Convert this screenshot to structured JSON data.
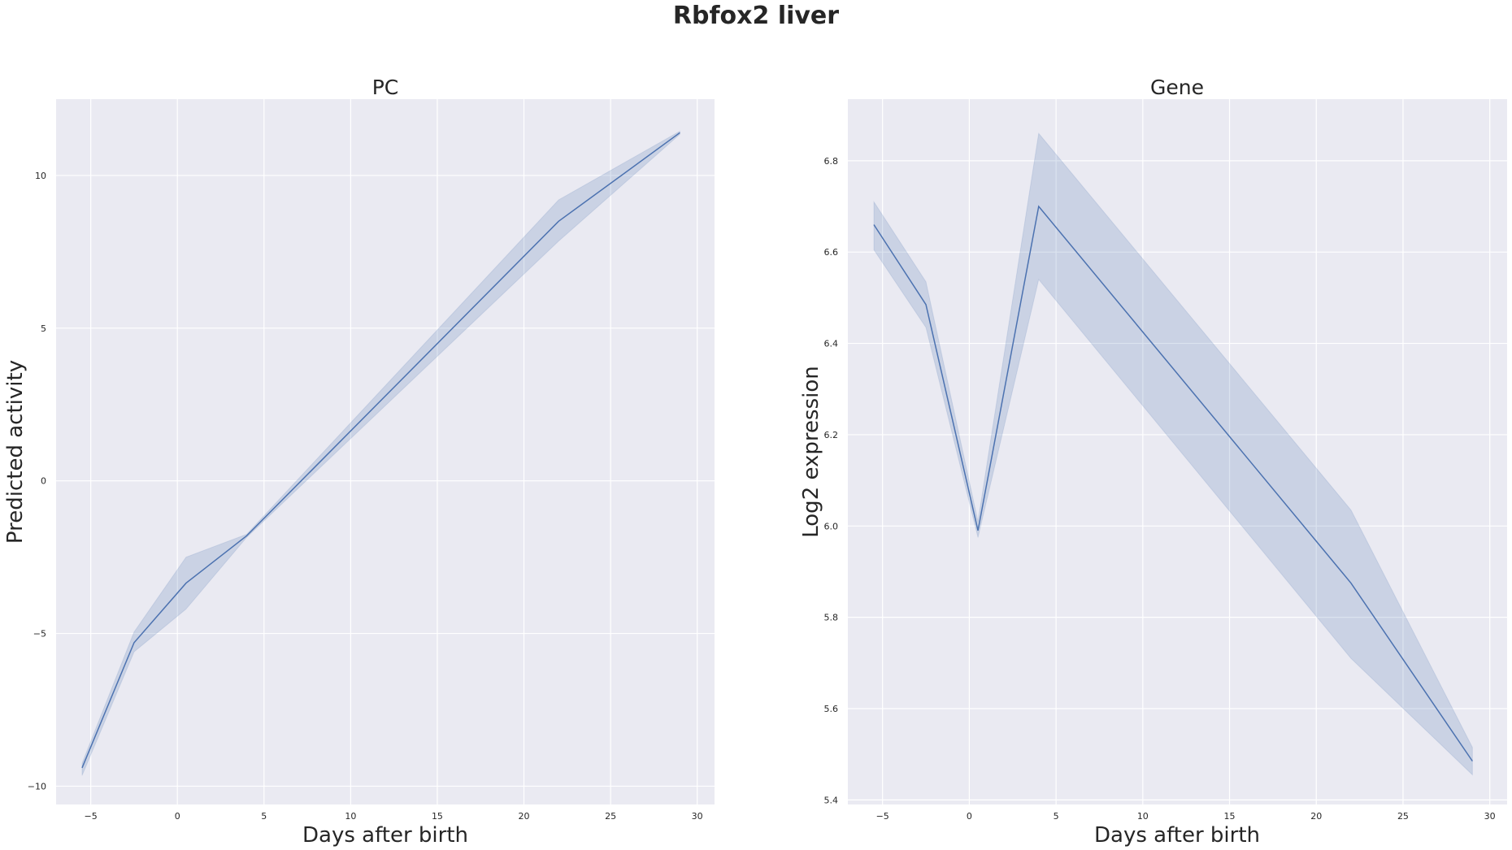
{
  "figure": {
    "title": "Rbfox2 liver"
  },
  "chart_data": [
    {
      "type": "line",
      "title": "PC",
      "xlabel": "Days after birth",
      "ylabel": "Predicted activity",
      "xlim": [
        -7,
        31
      ],
      "ylim": [
        -10.6,
        12.5
      ],
      "xticks": [
        -5,
        0,
        5,
        10,
        15,
        20,
        25,
        30
      ],
      "yticks": [
        -10,
        -5,
        0,
        5,
        10
      ],
      "xtick_labels": [
        "−5",
        "0",
        "5",
        "10",
        "15",
        "20",
        "25",
        "30"
      ],
      "ytick_labels": [
        "−10",
        "−5",
        "0",
        "5",
        "10"
      ],
      "grid": true,
      "series": [
        {
          "x": [
            -5.5,
            -2.5,
            0.5,
            4,
            22,
            29
          ],
          "y": [
            -9.4,
            -5.3,
            -3.35,
            -1.8,
            8.5,
            11.4
          ],
          "ci_lower": [
            -9.65,
            -5.6,
            -4.2,
            -1.85,
            7.85,
            11.35
          ],
          "ci_upper": [
            -9.25,
            -4.95,
            -2.5,
            -1.75,
            9.2,
            11.45
          ],
          "color": "#4c72b0"
        }
      ]
    },
    {
      "type": "line",
      "title": "Gene",
      "xlabel": "Days after birth",
      "ylabel": "Log2 expression",
      "xlim": [
        -7,
        31
      ],
      "ylim": [
        5.39,
        6.935
      ],
      "xticks": [
        -5,
        0,
        5,
        10,
        15,
        20,
        25,
        30
      ],
      "yticks": [
        5.4,
        5.6,
        5.8,
        6.0,
        6.2,
        6.4,
        6.6,
        6.8
      ],
      "xtick_labels": [
        "−5",
        "0",
        "5",
        "10",
        "15",
        "20",
        "25",
        "30"
      ],
      "ytick_labels": [
        "5.4",
        "5.6",
        "5.8",
        "6.0",
        "6.2",
        "6.4",
        "6.6",
        "6.8"
      ],
      "grid": true,
      "series": [
        {
          "x": [
            -5.5,
            -2.5,
            0.5,
            4,
            22,
            29
          ],
          "y": [
            6.66,
            6.485,
            5.99,
            6.7,
            5.875,
            5.485
          ],
          "ci_lower": [
            6.605,
            6.435,
            5.975,
            6.54,
            5.71,
            5.455
          ],
          "ci_upper": [
            6.71,
            6.535,
            6.01,
            6.86,
            6.035,
            5.515
          ],
          "color": "#4c72b0"
        }
      ]
    }
  ]
}
